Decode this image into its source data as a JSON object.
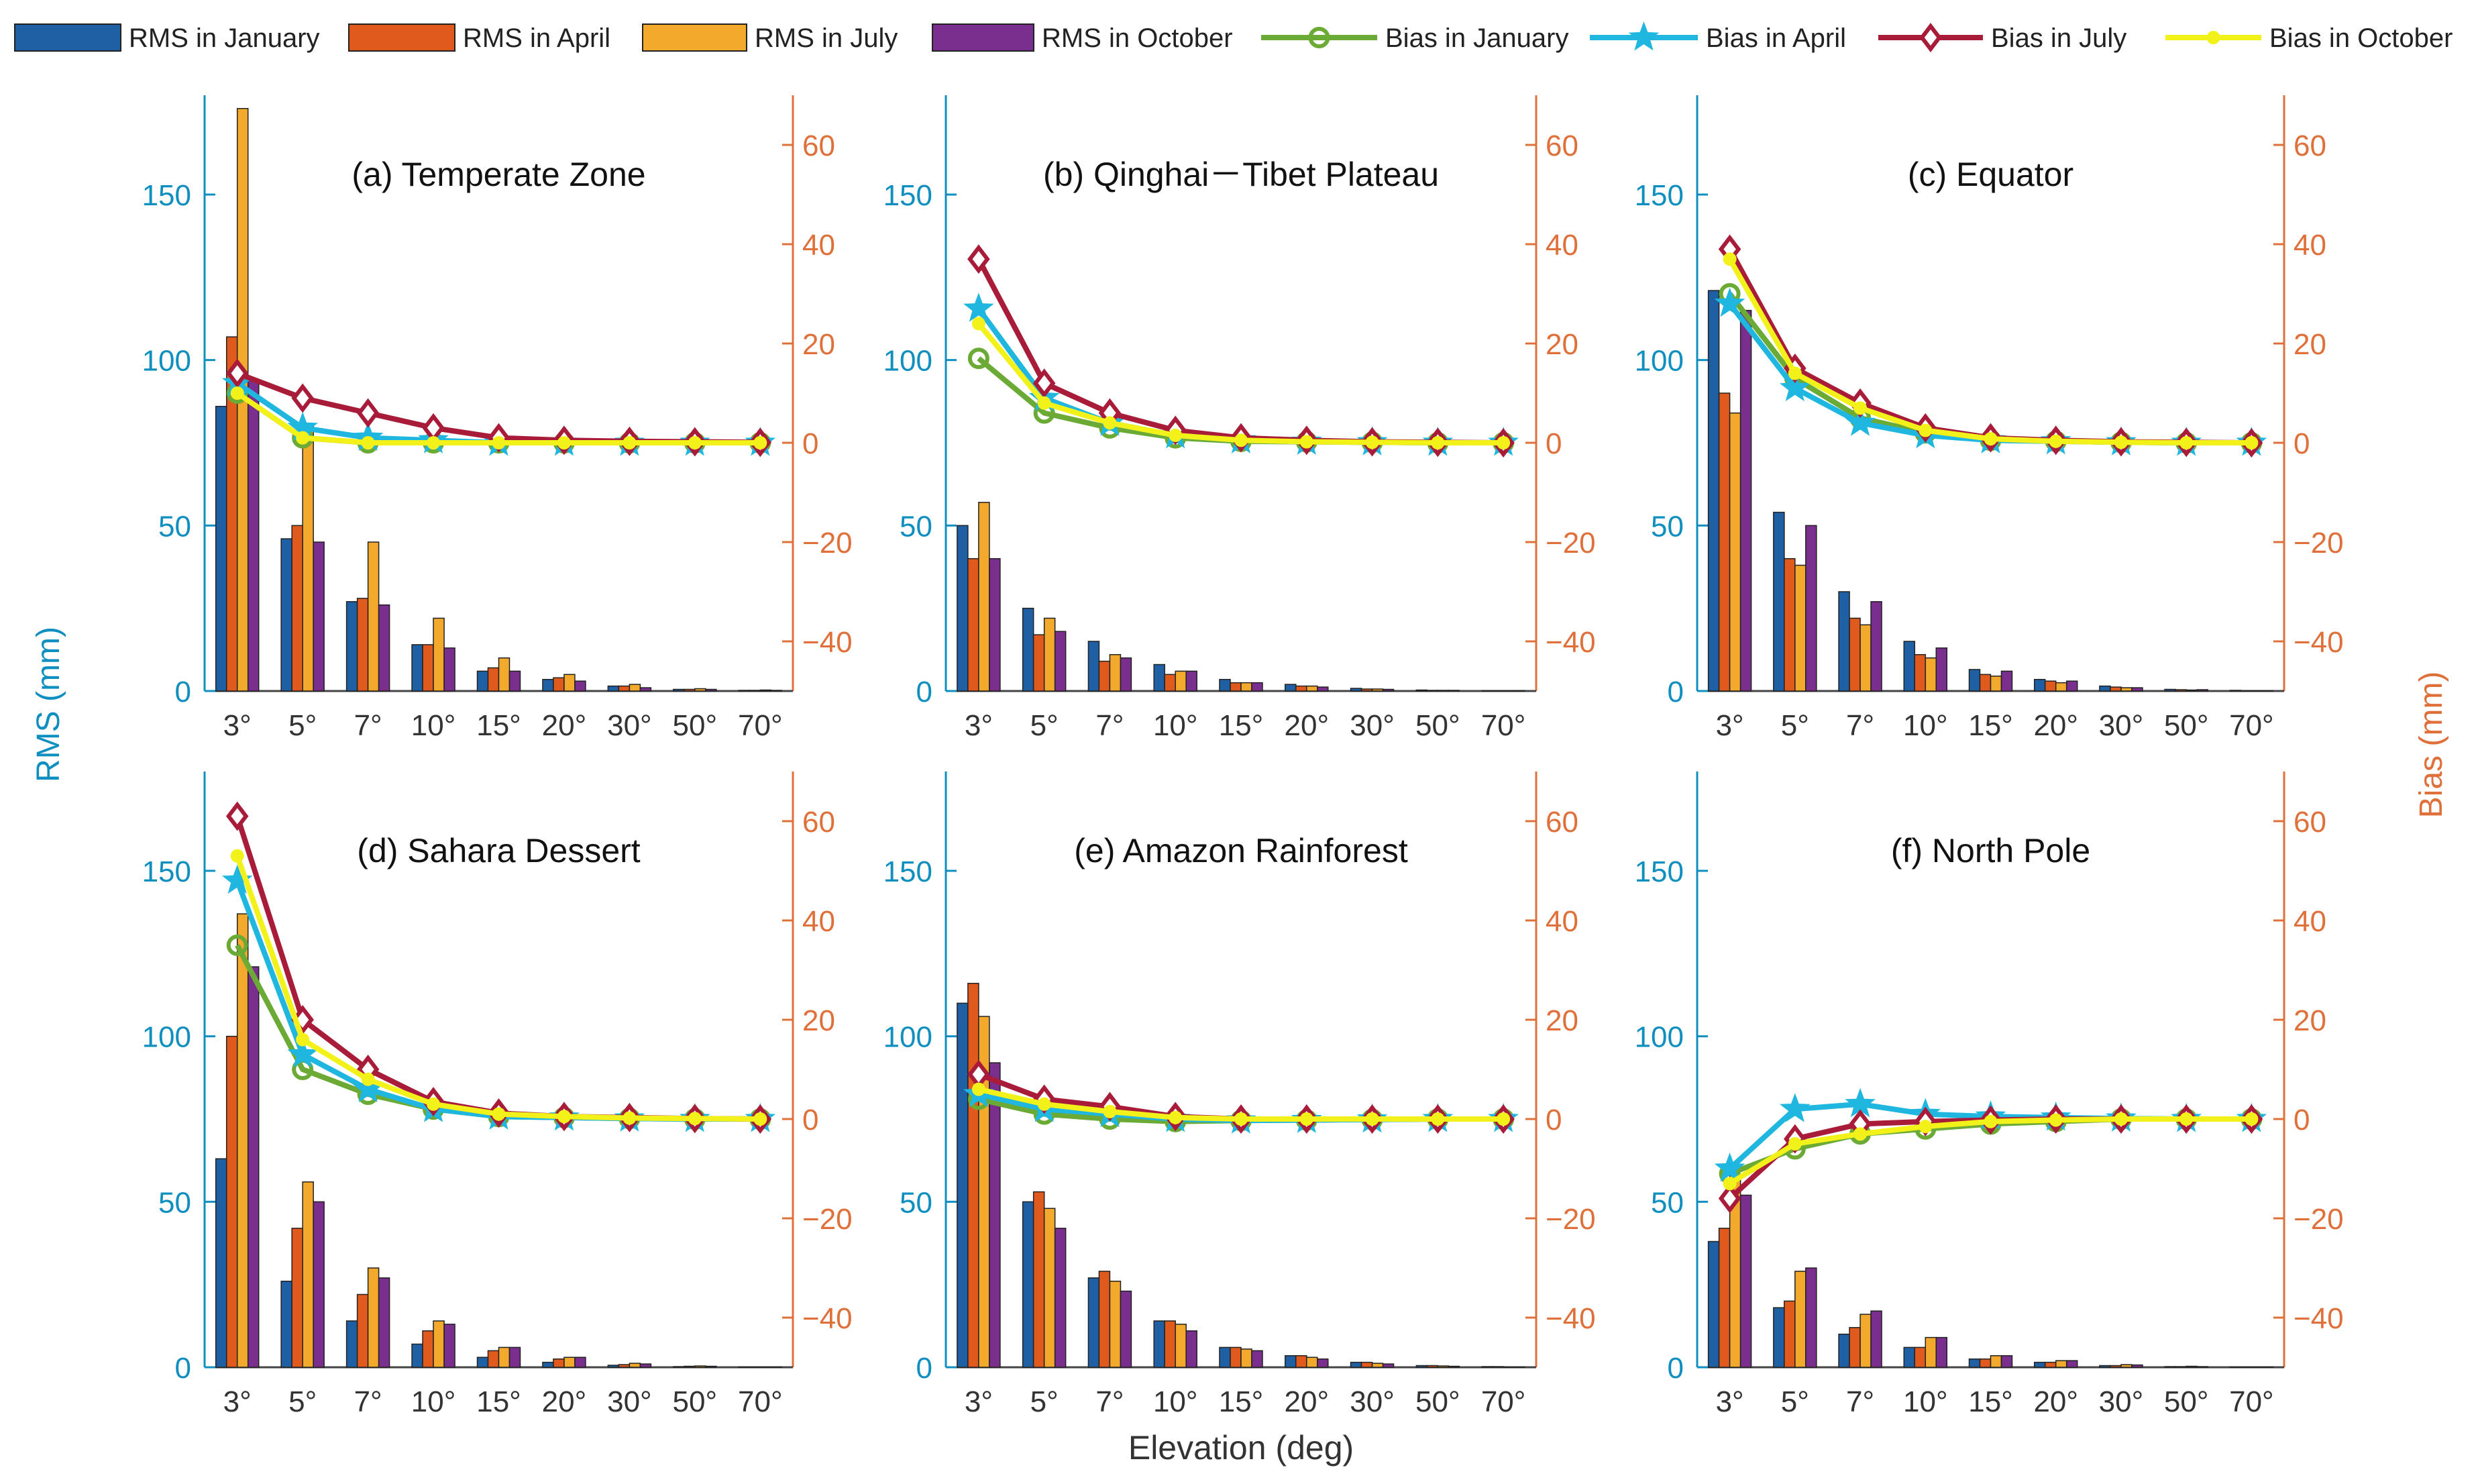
{
  "figure": {
    "ylabel_left": "RMS (mm)",
    "ylabel_right": "Bias (mm)",
    "xlabel": "Elevation (deg)"
  },
  "legend": [
    {
      "label": "RMS in January",
      "kind": "bar",
      "color": "#1f5fa3"
    },
    {
      "label": "RMS in April",
      "kind": "bar",
      "color": "#e05a1e"
    },
    {
      "label": "RMS in July",
      "kind": "bar",
      "color": "#f2a92c"
    },
    {
      "label": "RMS in October",
      "kind": "bar",
      "color": "#7a2e8e"
    },
    {
      "label": "Bias in January",
      "kind": "line",
      "marker": "circle",
      "color": "#6aaa35"
    },
    {
      "label": "Bias in April",
      "kind": "line",
      "marker": "star",
      "color": "#1fb6e0"
    },
    {
      "label": "Bias in July",
      "kind": "line",
      "marker": "diamond",
      "color": "#a81c3a"
    },
    {
      "label": "Bias in October",
      "kind": "line",
      "marker": "dot",
      "color": "#f2f21a"
    }
  ],
  "axis_colors": {
    "left": "#0f8fc0",
    "right": "#e0703a"
  },
  "chart_data": [
    {
      "type": "bar+line",
      "title": "(a) Temperate Zone",
      "categories": [
        "3°",
        "5°",
        "7°",
        "10°",
        "15°",
        "20°",
        "30°",
        "50°",
        "70°"
      ],
      "ylim_left": [
        0,
        180
      ],
      "yticks_left": [
        0,
        50,
        100,
        150
      ],
      "ylim_right": [
        -50,
        70
      ],
      "yticks_right": [
        -40,
        -20,
        0,
        20,
        40,
        60
      ],
      "rms": [
        {
          "name": "RMS in January",
          "values": [
            86,
            46,
            27,
            14,
            6,
            3.5,
            1.5,
            0.5,
            0.2
          ]
        },
        {
          "name": "RMS in April",
          "values": [
            107,
            50,
            28,
            14,
            7,
            4,
            1.5,
            0.5,
            0.2
          ]
        },
        {
          "name": "RMS in July",
          "values": [
            176,
            80,
            45,
            22,
            10,
            5,
            2,
            0.7,
            0.3
          ]
        },
        {
          "name": "RMS in October",
          "values": [
            94,
            45,
            26,
            13,
            6,
            3,
            1,
            0.5,
            0.2
          ]
        }
      ],
      "bias": [
        {
          "name": "Bias in January",
          "values": [
            10,
            1,
            0,
            0,
            0,
            0,
            0,
            0,
            0
          ]
        },
        {
          "name": "Bias in April",
          "values": [
            12,
            3,
            1,
            0.5,
            0,
            0,
            0,
            0,
            0
          ]
        },
        {
          "name": "Bias in July",
          "values": [
            14,
            9,
            6,
            3,
            1,
            0.5,
            0.3,
            0.2,
            0.1
          ]
        },
        {
          "name": "Bias in October",
          "values": [
            10,
            1,
            0,
            0,
            0,
            0,
            0,
            0,
            0
          ]
        }
      ]
    },
    {
      "type": "bar+line",
      "title": "(b) Qinghai－Tibet Plateau",
      "categories": [
        "3°",
        "5°",
        "7°",
        "10°",
        "15°",
        "20°",
        "30°",
        "50°",
        "70°"
      ],
      "ylim_left": [
        0,
        180
      ],
      "yticks_left": [
        0,
        50,
        100,
        150
      ],
      "ylim_right": [
        -50,
        70
      ],
      "yticks_right": [
        -40,
        -20,
        0,
        20,
        40,
        60
      ],
      "rms": [
        {
          "name": "RMS in January",
          "values": [
            50,
            25,
            15,
            8,
            3.5,
            2,
            0.8,
            0.3,
            0.1
          ]
        },
        {
          "name": "RMS in April",
          "values": [
            40,
            17,
            9,
            5,
            2.5,
            1.5,
            0.6,
            0.2,
            0.1
          ]
        },
        {
          "name": "RMS in July",
          "values": [
            57,
            22,
            11,
            6,
            2.5,
            1.5,
            0.6,
            0.2,
            0.1
          ]
        },
        {
          "name": "RMS in October",
          "values": [
            40,
            18,
            10,
            6,
            2.5,
            1.2,
            0.5,
            0.2,
            0.1
          ]
        }
      ],
      "bias": [
        {
          "name": "Bias in January",
          "values": [
            17,
            6,
            3,
            1,
            0.3,
            0.2,
            0.1,
            0,
            0
          ]
        },
        {
          "name": "Bias in April",
          "values": [
            27,
            9,
            4,
            1.5,
            0.5,
            0.2,
            0.1,
            0,
            0
          ]
        },
        {
          "name": "Bias in July",
          "values": [
            37,
            12,
            6,
            2.5,
            1,
            0.5,
            0.2,
            0.1,
            0
          ]
        },
        {
          "name": "Bias in October",
          "values": [
            24,
            8,
            4,
            1.5,
            0.5,
            0.2,
            0.1,
            0,
            0
          ]
        }
      ]
    },
    {
      "type": "bar+line",
      "title": "(c) Equator",
      "categories": [
        "3°",
        "5°",
        "7°",
        "10°",
        "15°",
        "20°",
        "30°",
        "50°",
        "70°"
      ],
      "ylim_left": [
        0,
        180
      ],
      "yticks_left": [
        0,
        50,
        100,
        150
      ],
      "ylim_right": [
        -50,
        70
      ],
      "yticks_right": [
        -40,
        -20,
        0,
        20,
        40,
        60
      ],
      "rms": [
        {
          "name": "RMS in January",
          "values": [
            121,
            54,
            30,
            15,
            6.5,
            3.5,
            1.5,
            0.5,
            0.2
          ]
        },
        {
          "name": "RMS in April",
          "values": [
            90,
            40,
            22,
            11,
            5,
            3,
            1.2,
            0.4,
            0.1
          ]
        },
        {
          "name": "RMS in July",
          "values": [
            84,
            38,
            20,
            10,
            4.5,
            2.5,
            1,
            0.3,
            0.1
          ]
        },
        {
          "name": "RMS in October",
          "values": [
            115,
            50,
            27,
            13,
            6,
            3,
            1,
            0.4,
            0.1
          ]
        }
      ],
      "bias": [
        {
          "name": "Bias in January",
          "values": [
            30,
            13,
            5,
            2,
            0.5,
            0.3,
            0.1,
            0,
            0
          ]
        },
        {
          "name": "Bias in April",
          "values": [
            28,
            11,
            4,
            1.5,
            0.5,
            0.3,
            0.1,
            0,
            0
          ]
        },
        {
          "name": "Bias in July",
          "values": [
            39,
            15,
            8,
            3,
            1,
            0.5,
            0.2,
            0.1,
            0
          ]
        },
        {
          "name": "Bias in October",
          "values": [
            37,
            14,
            7,
            2.5,
            0.8,
            0.3,
            0.1,
            0,
            0
          ]
        }
      ]
    },
    {
      "type": "bar+line",
      "title": "(d) Sahara Dessert",
      "categories": [
        "3°",
        "5°",
        "7°",
        "10°",
        "15°",
        "20°",
        "30°",
        "50°",
        "70°"
      ],
      "ylim_left": [
        0,
        180
      ],
      "yticks_left": [
        0,
        50,
        100,
        150
      ],
      "ylim_right": [
        -50,
        70
      ],
      "yticks_right": [
        -40,
        -20,
        0,
        20,
        40,
        60
      ],
      "rms": [
        {
          "name": "RMS in January",
          "values": [
            63,
            26,
            14,
            7,
            3,
            1.5,
            0.6,
            0.2,
            0.1
          ]
        },
        {
          "name": "RMS in April",
          "values": [
            100,
            42,
            22,
            11,
            5,
            2.5,
            0.8,
            0.3,
            0.1
          ]
        },
        {
          "name": "RMS in July",
          "values": [
            137,
            56,
            30,
            14,
            6,
            3,
            1.2,
            0.4,
            0.1
          ]
        },
        {
          "name": "RMS in October",
          "values": [
            121,
            50,
            27,
            13,
            6,
            3,
            1,
            0.3,
            0.1
          ]
        }
      ],
      "bias": [
        {
          "name": "Bias in January",
          "values": [
            35,
            10,
            5,
            2,
            0.5,
            0.3,
            0.1,
            0,
            0
          ]
        },
        {
          "name": "Bias in April",
          "values": [
            48,
            13,
            6,
            2,
            0.5,
            0.3,
            0.1,
            0,
            0
          ]
        },
        {
          "name": "Bias in July",
          "values": [
            61,
            20,
            10,
            3.5,
            1.2,
            0.5,
            0.3,
            0.1,
            0
          ]
        },
        {
          "name": "Bias in October",
          "values": [
            53,
            16,
            8,
            3,
            1,
            0.5,
            0.2,
            0.1,
            0
          ]
        }
      ]
    },
    {
      "type": "bar+line",
      "title": "(e) Amazon Rainforest",
      "categories": [
        "3°",
        "5°",
        "7°",
        "10°",
        "15°",
        "20°",
        "30°",
        "50°",
        "70°"
      ],
      "ylim_left": [
        0,
        180
      ],
      "yticks_left": [
        0,
        50,
        100,
        150
      ],
      "ylim_right": [
        -50,
        70
      ],
      "yticks_right": [
        -40,
        -20,
        0,
        20,
        40,
        60
      ],
      "rms": [
        {
          "name": "RMS in January",
          "values": [
            110,
            50,
            27,
            14,
            6,
            3.5,
            1.5,
            0.5,
            0.2
          ]
        },
        {
          "name": "RMS in April",
          "values": [
            116,
            53,
            29,
            14,
            6,
            3.5,
            1.5,
            0.5,
            0.2
          ]
        },
        {
          "name": "RMS in July",
          "values": [
            106,
            48,
            26,
            13,
            5.5,
            3,
            1.2,
            0.4,
            0.1
          ]
        },
        {
          "name": "RMS in October",
          "values": [
            92,
            42,
            23,
            11,
            5,
            2.5,
            1,
            0.3,
            0.1
          ]
        }
      ],
      "bias": [
        {
          "name": "Bias in January",
          "values": [
            4,
            1,
            0,
            -0.5,
            -0.3,
            -0.2,
            -0.1,
            0,
            0
          ]
        },
        {
          "name": "Bias in April",
          "values": [
            5,
            2,
            1,
            0,
            -0.3,
            -0.2,
            -0.1,
            0,
            0
          ]
        },
        {
          "name": "Bias in July",
          "values": [
            9,
            4,
            2.5,
            0.5,
            0,
            0,
            0,
            0,
            0
          ]
        },
        {
          "name": "Bias in October",
          "values": [
            6,
            3,
            1.5,
            0.3,
            0,
            0,
            0,
            0,
            0
          ]
        }
      ]
    },
    {
      "type": "bar+line",
      "title": "(f) North Pole",
      "categories": [
        "3°",
        "5°",
        "7°",
        "10°",
        "15°",
        "20°",
        "30°",
        "50°",
        "70°"
      ],
      "ylim_left": [
        0,
        180
      ],
      "yticks_left": [
        0,
        50,
        100,
        150
      ],
      "ylim_right": [
        -50,
        70
      ],
      "yticks_right": [
        -40,
        -20,
        0,
        20,
        40,
        60
      ],
      "rms": [
        {
          "name": "RMS in January",
          "values": [
            38,
            18,
            10,
            6,
            2.5,
            1.5,
            0.5,
            0.2,
            0.1
          ]
        },
        {
          "name": "RMS in April",
          "values": [
            42,
            20,
            12,
            6,
            2.5,
            1.5,
            0.5,
            0.2,
            0.1
          ]
        },
        {
          "name": "RMS in July",
          "values": [
            58,
            29,
            16,
            9,
            3.5,
            2,
            0.8,
            0.3,
            0.1
          ]
        },
        {
          "name": "RMS in October",
          "values": [
            52,
            30,
            17,
            9,
            3.5,
            2,
            0.7,
            0.2,
            0.1
          ]
        }
      ],
      "bias": [
        {
          "name": "Bias in January",
          "values": [
            -11,
            -6,
            -3,
            -2,
            -1,
            -0.5,
            0,
            0,
            0
          ]
        },
        {
          "name": "Bias in April",
          "values": [
            -10,
            2,
            3,
            1,
            0.5,
            0.3,
            0.1,
            0,
            0
          ]
        },
        {
          "name": "Bias in July",
          "values": [
            -16,
            -4,
            -1,
            -0.5,
            -0.2,
            0,
            0,
            0,
            0
          ]
        },
        {
          "name": "Bias in October",
          "values": [
            -13,
            -5,
            -3,
            -1.5,
            -0.5,
            -0.2,
            0,
            0,
            0
          ]
        }
      ]
    }
  ]
}
